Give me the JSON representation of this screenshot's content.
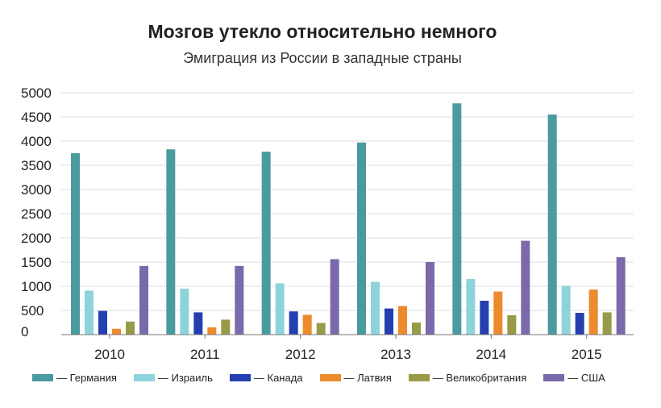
{
  "chart_data": {
    "type": "bar",
    "title": "Мозгов утекло относительно немного",
    "subtitle": "Эмиграция из России в западные страны",
    "xlabel": "",
    "ylabel": "",
    "categories": [
      "2010",
      "2011",
      "2012",
      "2013",
      "2014",
      "2015"
    ],
    "ylim": [
      0,
      5000
    ],
    "yticks": [
      0,
      500,
      1000,
      1500,
      2000,
      2500,
      3000,
      3500,
      4000,
      4500,
      5000
    ],
    "grid": true,
    "legend_position": "bottom",
    "series": [
      {
        "name": "Германия",
        "legend_label": "— Германия",
        "color": "#4a9b9f",
        "values": [
          3750,
          3830,
          3780,
          3970,
          4780,
          4550
        ]
      },
      {
        "name": "Израиль",
        "legend_label": "— Израиль",
        "color": "#8fd3da",
        "values": [
          910,
          950,
          1060,
          1090,
          1150,
          1010
        ]
      },
      {
        "name": "Канада",
        "legend_label": "— Канада",
        "color": "#233fb0",
        "values": [
          490,
          460,
          480,
          540,
          700,
          450
        ]
      },
      {
        "name": "Латвия",
        "legend_label": "— Латвия",
        "color": "#ec8a2c",
        "values": [
          120,
          150,
          410,
          590,
          890,
          930
        ]
      },
      {
        "name": "Великобритания",
        "legend_label": "— Великобритания",
        "color": "#999a47",
        "values": [
          270,
          310,
          240,
          250,
          400,
          460
        ]
      },
      {
        "name": "США",
        "legend_label": "— США",
        "color": "#7a69ab",
        "values": [
          1420,
          1420,
          1560,
          1500,
          1940,
          1600
        ]
      }
    ]
  }
}
